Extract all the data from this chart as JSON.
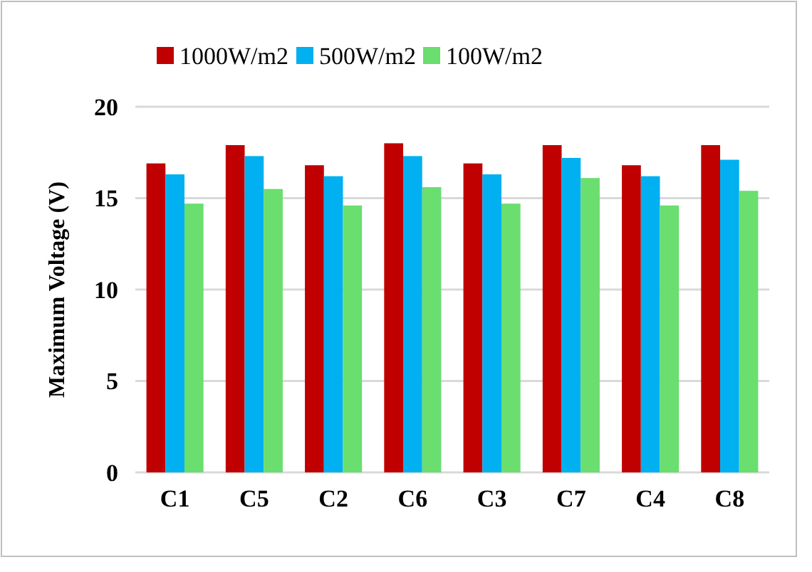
{
  "chart_data": {
    "type": "bar",
    "ylabel": "Maximum Voltage (V)",
    "categories": [
      "C1",
      "C5",
      "C2",
      "C6",
      "C3",
      "C7",
      "C4",
      "C8"
    ],
    "series": [
      {
        "name": "1000W/m2",
        "color": "#c00000",
        "values": [
          16.9,
          17.9,
          16.8,
          18.0,
          16.9,
          17.9,
          16.8,
          17.9
        ]
      },
      {
        "name": "500W/m2",
        "color": "#00b0f0",
        "values": [
          16.3,
          17.3,
          16.2,
          17.3,
          16.3,
          17.2,
          16.2,
          17.1
        ]
      },
      {
        "name": "100W/m2",
        "color": "#6ade6f",
        "values": [
          14.7,
          15.5,
          14.6,
          15.6,
          14.7,
          16.1,
          14.6,
          15.4
        ]
      }
    ],
    "ylim": [
      0,
      20
    ],
    "yticks": [
      0,
      5,
      10,
      15,
      20
    ],
    "grid": "y",
    "legend": "top"
  }
}
